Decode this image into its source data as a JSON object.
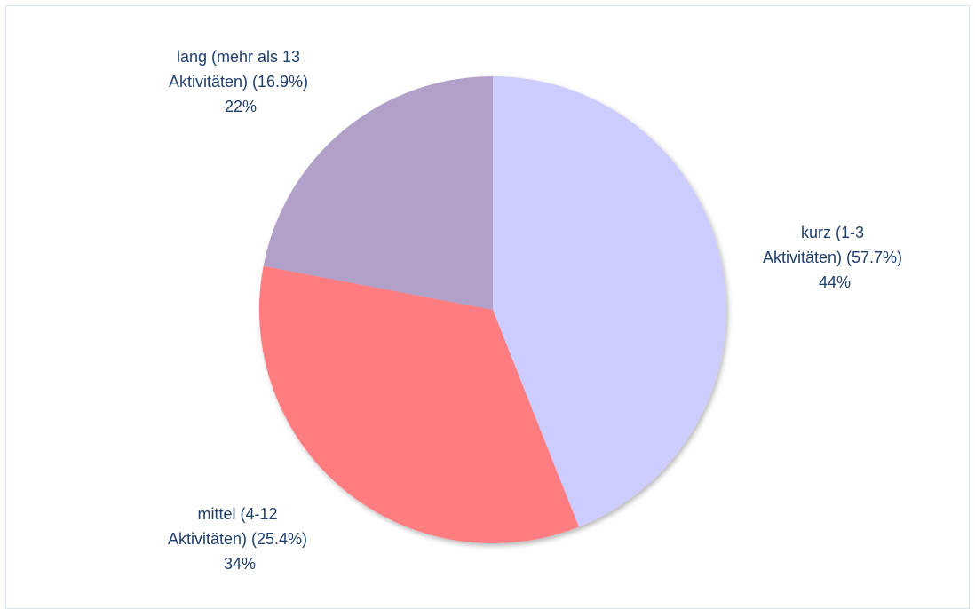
{
  "chart_data": {
    "type": "pie",
    "start_angle_deg": 0,
    "direction": "clockwise",
    "slices": [
      {
        "label_lines": [
          "kurz (1-3",
          "Aktivitäten) (57.7%)"
        ],
        "percent_label": "44%",
        "value": 44,
        "color": "#ccccff"
      },
      {
        "label_lines": [
          "mittel (4-12",
          "Aktivitäten) (25.4%)"
        ],
        "percent_label": "34%",
        "value": 34,
        "color": "#ff7c80"
      },
      {
        "label_lines": [
          "lang (mehr als 13",
          "Aktivitäten) (16.9%)"
        ],
        "percent_label": "22%",
        "value": 22,
        "color": "#b1a0c7"
      }
    ]
  }
}
